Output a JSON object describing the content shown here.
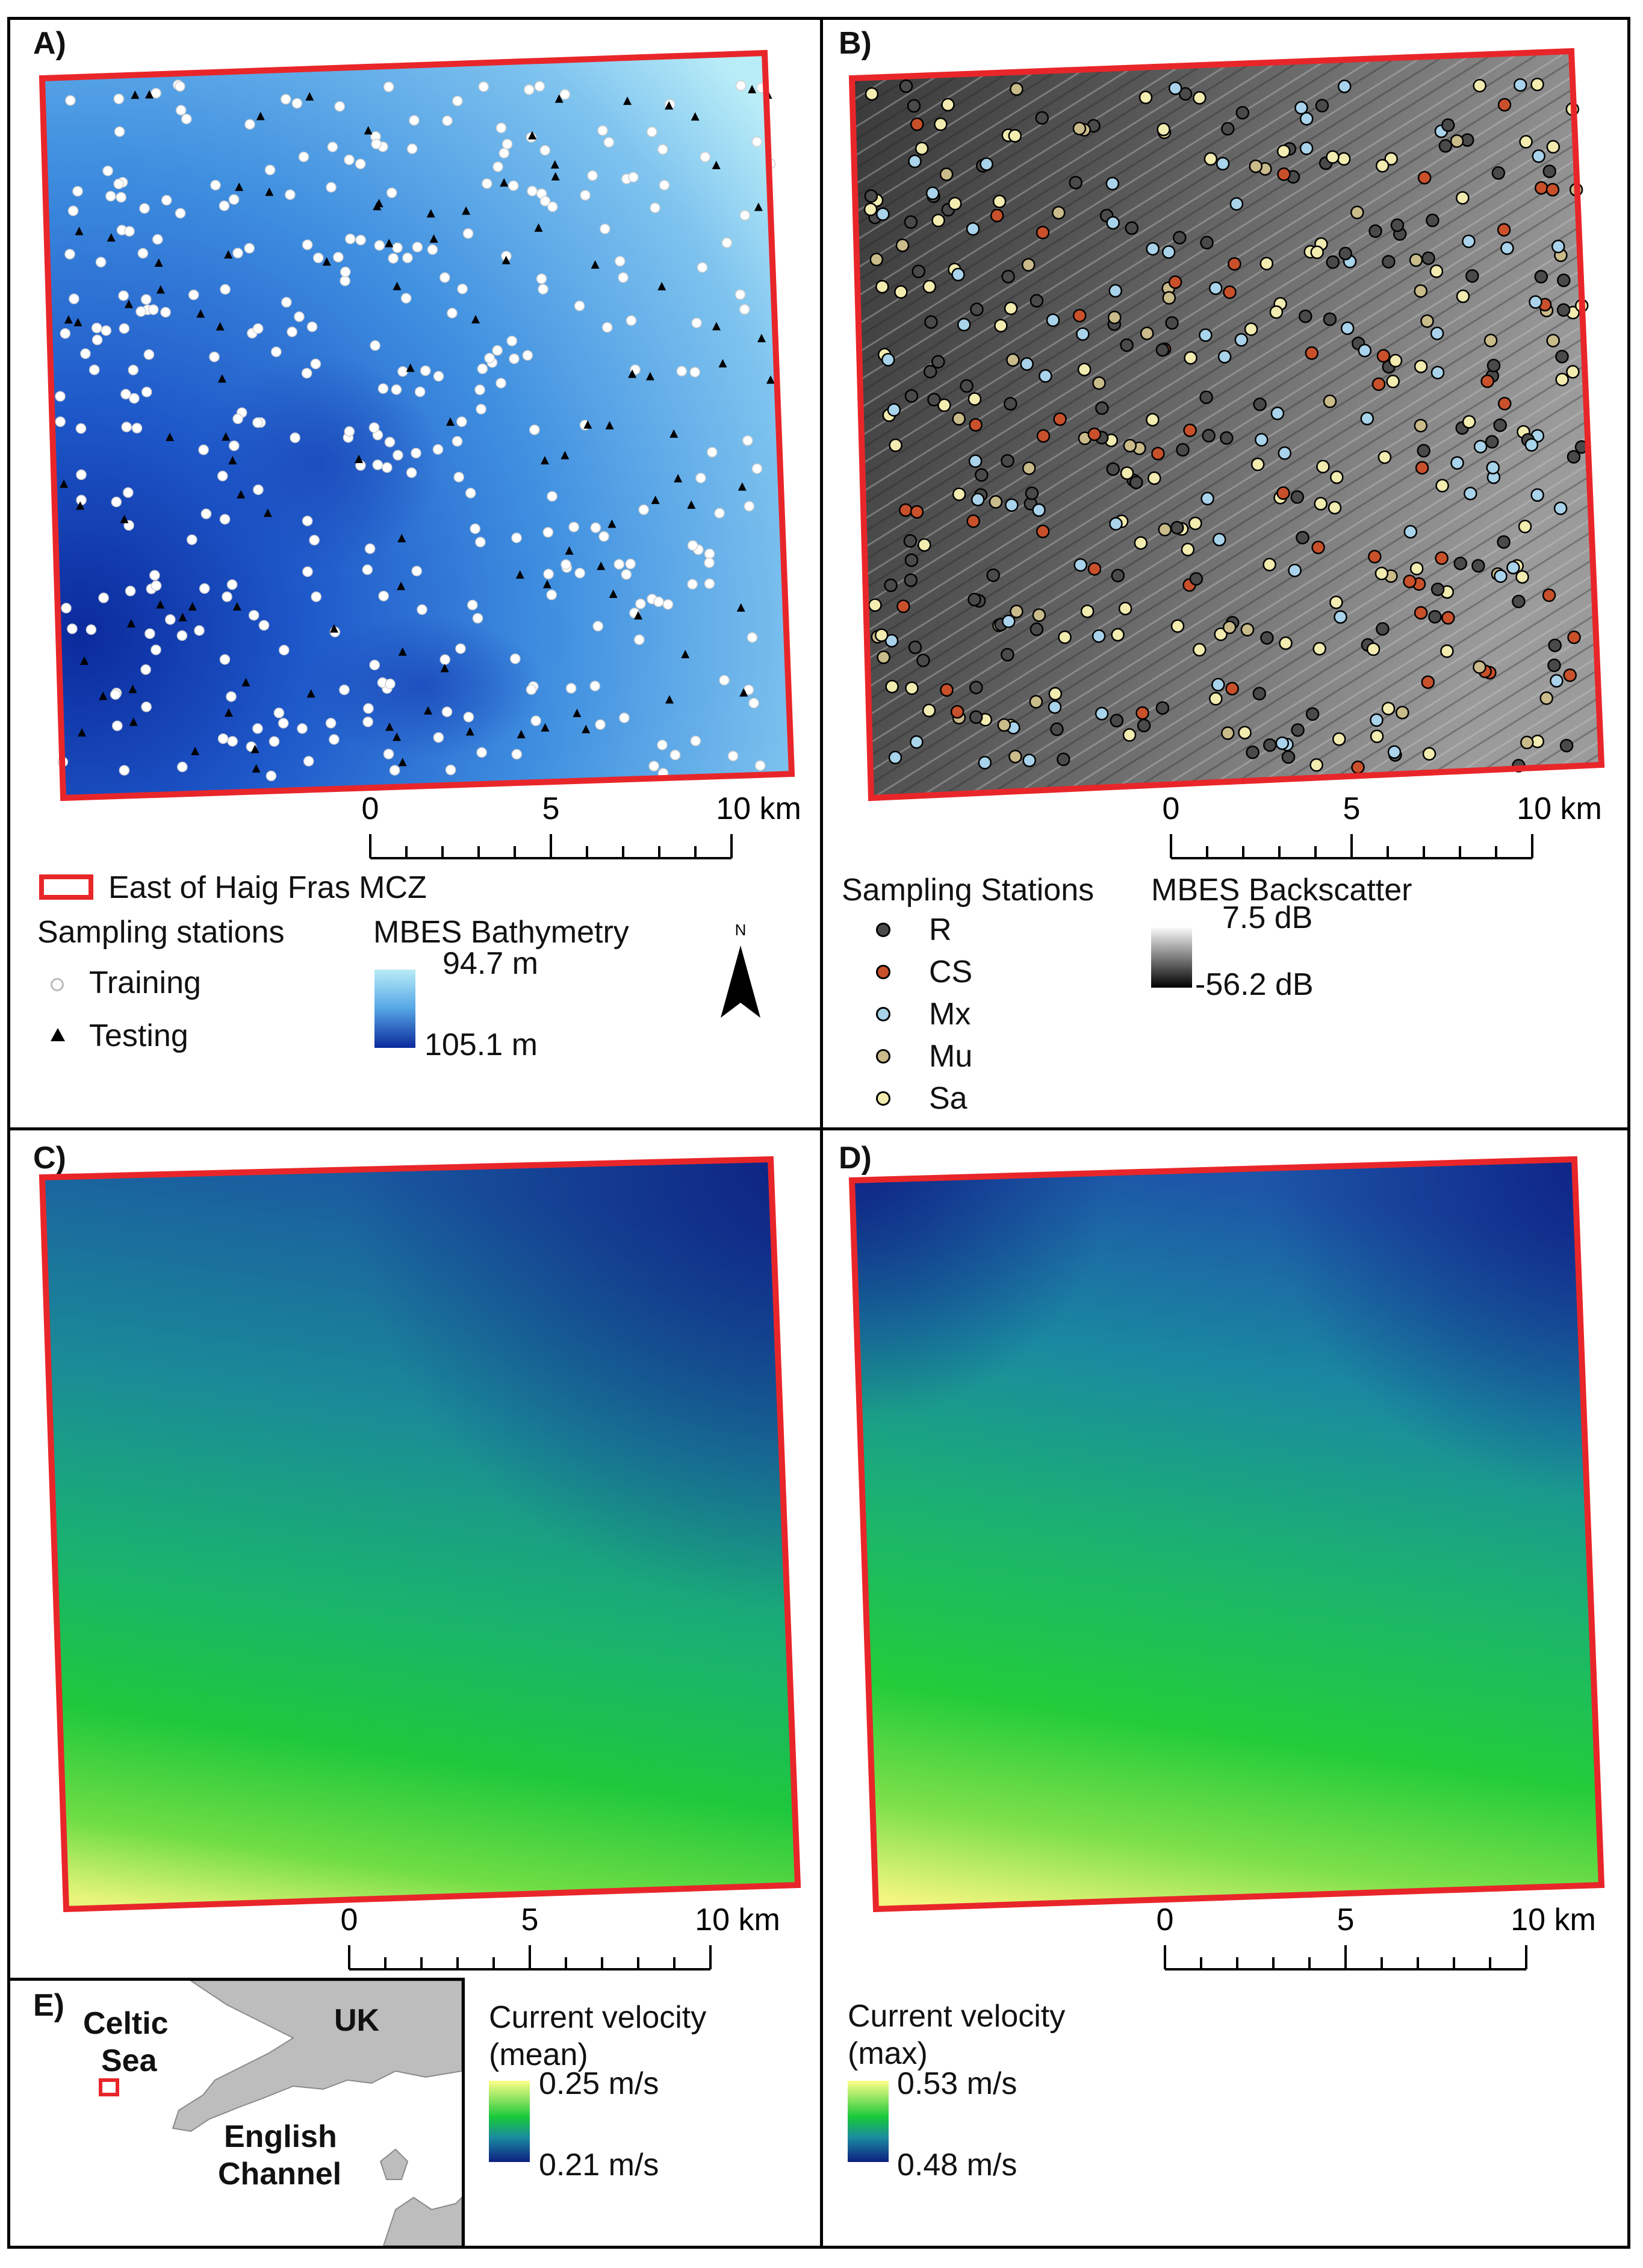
{
  "panels": {
    "a": {
      "label": "A)"
    },
    "b": {
      "label": "B)"
    },
    "c": {
      "label": "C)"
    },
    "d": {
      "label": "D)"
    },
    "e": {
      "label": "E)"
    }
  },
  "scalebar": {
    "ticks": [
      "0",
      "5",
      "10 km"
    ]
  },
  "north_arrow": {
    "label": "N"
  },
  "legend_a": {
    "boundary": "East of Haig Fras MCZ",
    "stations_title": "Sampling stations",
    "training": "Training",
    "testing": "Testing",
    "bathy_title": "MBES Bathymetry",
    "bathy_max": "94.7 m",
    "bathy_min": "105.1 m"
  },
  "legend_b": {
    "stations_title": "Sampling Stations",
    "classes": [
      {
        "code": "R",
        "color": "#4a4a4a"
      },
      {
        "code": "CS",
        "color": "#c8502a"
      },
      {
        "code": "Mx",
        "color": "#a9d3ea"
      },
      {
        "code": "Mu",
        "color": "#c9bb8a"
      },
      {
        "code": "Sa",
        "color": "#f2ecb0"
      }
    ],
    "backscatter_title": "MBES Backscatter",
    "bs_max": "7.5 dB",
    "bs_min": "-56.2 dB"
  },
  "legend_c": {
    "title1": "Current velocity",
    "title2": "(mean)",
    "max": "0.25 m/s",
    "min": "0.21 m/s"
  },
  "legend_d": {
    "title1": "Current velocity",
    "title2": "(max)",
    "max": "0.53 m/s",
    "min": "0.48 m/s"
  },
  "inset_e": {
    "celtic1": "Celtic",
    "celtic2": "Sea",
    "uk": "UK",
    "english": "English",
    "channel": "Channel"
  },
  "colors": {
    "boundary": "#e8262a",
    "bathy_light": "#b8ecf7",
    "bathy_dark": "#0b2a9c",
    "velocity_high": "#ffff88",
    "velocity_mid": "#19c83a",
    "velocity_low": "#0d1f82"
  }
}
